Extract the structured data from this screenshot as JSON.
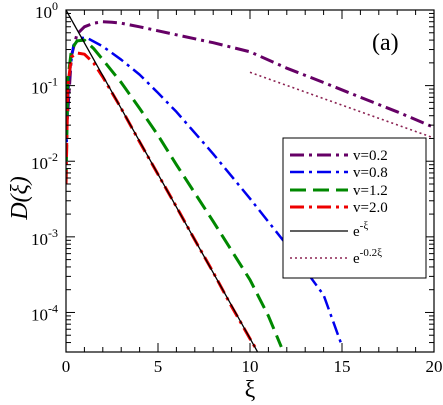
{
  "chart_data": {
    "type": "line",
    "panel_label": "(a)",
    "xlabel": "ξ",
    "ylabel": "D(ξ)",
    "xlim": [
      0,
      20
    ],
    "ylim": [
      3e-05,
      1
    ],
    "yscale": "log",
    "x_ticks": [
      0,
      5,
      10,
      15,
      20
    ],
    "y_ticks": [
      {
        "value": 0.0001,
        "base": "10",
        "exp": "-4"
      },
      {
        "value": 0.001,
        "base": "10",
        "exp": "-3"
      },
      {
        "value": 0.01,
        "base": "10",
        "exp": "-2"
      },
      {
        "value": 0.1,
        "base": "10",
        "exp": "-1"
      },
      {
        "value": 1,
        "base": "10",
        "exp": "0"
      }
    ],
    "legend_position": "right",
    "series": [
      {
        "name": "v=0.2",
        "color": "#660066",
        "dash": "14,5,3,5",
        "width": 3,
        "x": [
          0,
          0.3,
          0.6,
          1,
          1.5,
          2,
          2.5,
          3,
          4,
          5,
          6,
          8,
          10,
          12,
          14,
          16,
          18,
          20
        ],
        "y": [
          0.02,
          0.25,
          0.48,
          0.6,
          0.67,
          0.7,
          0.69,
          0.67,
          0.6,
          0.53,
          0.47,
          0.37,
          0.28,
          0.17,
          0.11,
          0.07,
          0.045,
          0.028
        ]
      },
      {
        "name": "v=0.8",
        "color": "#0000ee",
        "dash": "14,5,3,5",
        "width": 2.5,
        "x": [
          0,
          0.15,
          0.4,
          0.8,
          1.2,
          2,
          3,
          4,
          5,
          6,
          8,
          10,
          12,
          14,
          15
        ],
        "y": [
          0.01,
          0.12,
          0.34,
          0.43,
          0.42,
          0.33,
          0.22,
          0.14,
          0.08,
          0.045,
          0.0125,
          0.0032,
          0.00078,
          0.00017,
          3.6e-05
        ]
      },
      {
        "name": "v=1.2",
        "color": "#008800",
        "dash": "16,7",
        "width": 3,
        "x": [
          0,
          0.1,
          0.3,
          0.6,
          1,
          1.5,
          2,
          3,
          4,
          5,
          6,
          8,
          10,
          11,
          11.7
        ],
        "y": [
          0.005,
          0.12,
          0.3,
          0.39,
          0.4,
          0.31,
          0.22,
          0.11,
          0.05,
          0.022,
          0.009,
          0.0016,
          0.00027,
          9e-05,
          3.5e-05
        ]
      },
      {
        "name": "v=2.0",
        "color": "#ee0000",
        "dash": "14,5,3,5",
        "width": 3,
        "x": [
          0,
          0.1,
          0.3,
          0.6,
          1,
          1.5,
          2,
          3,
          4,
          5,
          6,
          7,
          8,
          9,
          10,
          10.3
        ],
        "y": [
          0.005,
          0.1,
          0.24,
          0.27,
          0.26,
          0.2,
          0.13,
          0.05,
          0.018,
          0.0067,
          0.0025,
          0.00091,
          0.00034,
          0.00012,
          4.5e-05,
          3.4e-05
        ]
      },
      {
        "name": "e",
        "name_sup": "-ξ",
        "color": "#000000",
        "dash": "",
        "width": 1.3,
        "x": [
          0,
          10.4
        ],
        "y": [
          1,
          3.04e-05
        ]
      },
      {
        "name": "e",
        "name_sup": "-0.2ξ",
        "color": "#8b2252",
        "dash": "2,3",
        "width": 1.6,
        "x": [
          10,
          20
        ],
        "y": [
          0.15,
          0.0203
        ]
      }
    ]
  }
}
